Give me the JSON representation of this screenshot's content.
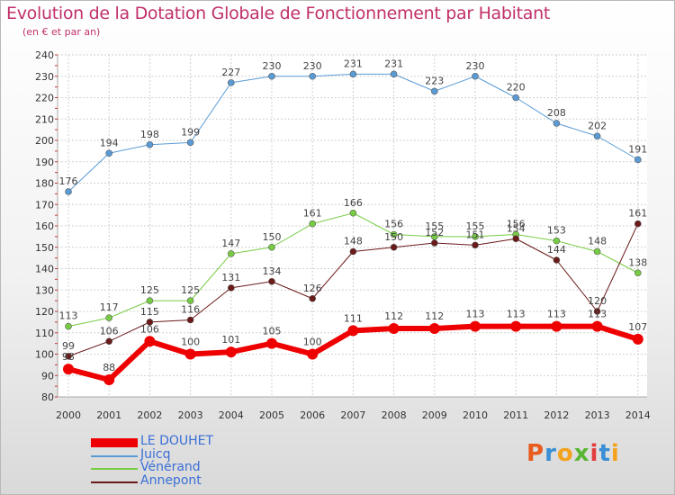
{
  "title": "Evolution de la Dotation Globale de Fonctionnement par Habitant",
  "subtitle": "(en € et par an)",
  "logo": {
    "text": "Proxiti",
    "colors": [
      "#e85c1e",
      "#3a8fd6",
      "#f3a21d",
      "#59b534",
      "#e23d3d",
      "#3a8fd6",
      "#f3a21d"
    ]
  },
  "chart_data": {
    "type": "line",
    "categories": [
      "2000",
      "2001",
      "2002",
      "2003",
      "2004",
      "2005",
      "2006",
      "2007",
      "2008",
      "2009",
      "2010",
      "2011",
      "2012",
      "2013",
      "2014"
    ],
    "ylim": [
      80,
      240
    ],
    "y_ticks": [
      "80",
      "90",
      "100",
      "110",
      "120",
      "130",
      "140",
      "150",
      "160",
      "170",
      "180",
      "190",
      "200",
      "210",
      "220",
      "230",
      "240"
    ],
    "grid": true,
    "legend_position": "bottom-left",
    "series": [
      {
        "name": "Juicq",
        "color": "#5a9bd5",
        "width": 1,
        "marker": 3.5,
        "values": [
          176,
          194,
          198,
          199,
          227,
          230,
          230,
          231,
          231,
          223,
          230,
          220,
          208,
          202,
          191
        ],
        "labels": [
          "176",
          "194",
          "198",
          "199",
          "227",
          "230",
          "230",
          "231",
          "231",
          "223",
          "230",
          "220",
          "208",
          "202",
          "191"
        ]
      },
      {
        "name": "Vénérand",
        "color": "#77cc44",
        "width": 1,
        "marker": 3.5,
        "values": [
          113,
          117,
          125,
          125,
          147,
          150,
          161,
          166,
          156,
          155,
          155,
          156,
          153,
          148,
          138
        ],
        "labels": [
          "113",
          "117",
          "125",
          "125",
          "147",
          "150",
          "161",
          "166",
          "156",
          "155",
          "155",
          "156",
          "153",
          "148",
          "138"
        ]
      },
      {
        "name": "Annepont",
        "color": "#6b1a1a",
        "width": 1,
        "marker": 3.5,
        "values": [
          99,
          106,
          115,
          116,
          131,
          134,
          126,
          148,
          150,
          152,
          151,
          154,
          144,
          120,
          161
        ],
        "labels": [
          "99",
          "106",
          "115",
          "116",
          "131",
          "134",
          "126",
          "148",
          "150",
          "152",
          "151",
          "154",
          "144",
          "120",
          "161"
        ]
      },
      {
        "name": "LE DOUHET",
        "color": "#ee0000",
        "width": 6,
        "marker": 6,
        "values": [
          93,
          88,
          106,
          100,
          101,
          105,
          100,
          111,
          112,
          112,
          113,
          113,
          113,
          113,
          107
        ],
        "labels": [
          "93",
          "88",
          "106",
          "100",
          "101",
          "105",
          "100",
          "111",
          "112",
          "112",
          "113",
          "113",
          "113",
          "113",
          "107"
        ]
      }
    ],
    "legend": [
      {
        "name": "LE DOUHET",
        "color": "#ee0000",
        "thickness": 10
      },
      {
        "name": "Juicq",
        "color": "#5a9bd5",
        "thickness": 2
      },
      {
        "name": "Vénérand",
        "color": "#77cc44",
        "thickness": 2
      },
      {
        "name": "Annepont",
        "color": "#6b1a1a",
        "thickness": 2
      }
    ]
  }
}
